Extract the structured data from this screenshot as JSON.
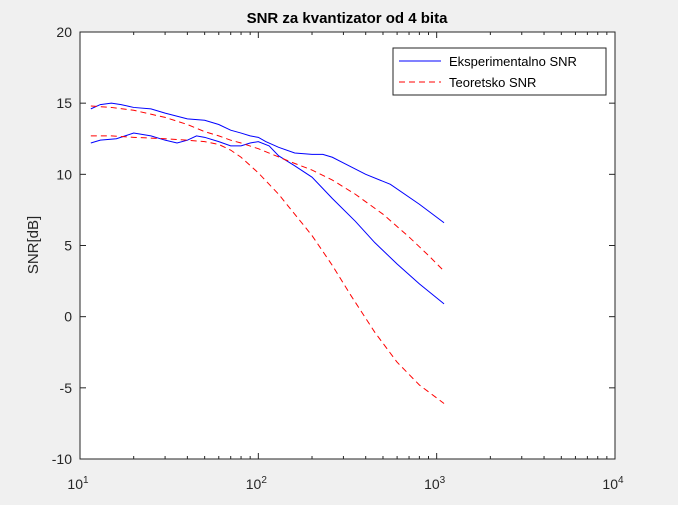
{
  "chart_data": {
    "type": "line",
    "title": "SNR za kvantizator od 4 bita",
    "xlabel": "",
    "ylabel": "SNR[dB]",
    "xscale": "log",
    "xlim": [
      10,
      10000
    ],
    "ylim": [
      -10,
      20
    ],
    "xticks": [
      {
        "value": 10,
        "base": "10",
        "exp": "1"
      },
      {
        "value": 100,
        "base": "10",
        "exp": "2"
      },
      {
        "value": 1000,
        "base": "10",
        "exp": "3"
      },
      {
        "value": 10000,
        "base": "10",
        "exp": "4"
      }
    ],
    "yticks": [
      -10,
      -5,
      0,
      5,
      10,
      15,
      20
    ],
    "grid": false,
    "legend_position": "top-right",
    "series": [
      {
        "name": "Eksperimentalno SNR",
        "color": "#0000ff",
        "style": "solid",
        "points": [
          [
            11.5,
            14.6
          ],
          [
            13,
            14.9
          ],
          [
            15,
            15.0
          ],
          [
            17,
            14.9
          ],
          [
            20,
            14.7
          ],
          [
            25,
            14.6
          ],
          [
            30,
            14.3
          ],
          [
            40,
            13.9
          ],
          [
            50,
            13.8
          ],
          [
            60,
            13.5
          ],
          [
            70,
            13.1
          ],
          [
            80,
            12.9
          ],
          [
            90,
            12.7
          ],
          [
            100,
            12.6
          ],
          [
            110,
            12.3
          ],
          [
            130,
            11.9
          ],
          [
            160,
            11.5
          ],
          [
            200,
            11.4
          ],
          [
            230,
            11.4
          ],
          [
            260,
            11.2
          ],
          [
            300,
            10.8
          ],
          [
            400,
            10.0
          ],
          [
            550,
            9.3
          ],
          [
            800,
            7.9
          ],
          [
            1100,
            6.6
          ]
        ]
      },
      {
        "name": "",
        "color": "#0000ff",
        "style": "solid",
        "points": [
          [
            11.5,
            12.2
          ],
          [
            13,
            12.4
          ],
          [
            16,
            12.5
          ],
          [
            20,
            12.9
          ],
          [
            25,
            12.7
          ],
          [
            30,
            12.4
          ],
          [
            35,
            12.2
          ],
          [
            40,
            12.4
          ],
          [
            45,
            12.7
          ],
          [
            50,
            12.6
          ],
          [
            60,
            12.3
          ],
          [
            70,
            12.0
          ],
          [
            80,
            12.0
          ],
          [
            90,
            12.2
          ],
          [
            100,
            12.3
          ],
          [
            115,
            12.0
          ],
          [
            130,
            11.3
          ],
          [
            160,
            10.6
          ],
          [
            200,
            9.8
          ],
          [
            260,
            8.3
          ],
          [
            350,
            6.7
          ],
          [
            450,
            5.2
          ],
          [
            600,
            3.7
          ],
          [
            800,
            2.3
          ],
          [
            1100,
            0.9
          ]
        ]
      },
      {
        "name": "Teoretsko SNR",
        "color": "#ff0000",
        "style": "dashed",
        "points": [
          [
            11.5,
            14.8
          ],
          [
            15,
            14.7
          ],
          [
            20,
            14.5
          ],
          [
            30,
            14.0
          ],
          [
            40,
            13.5
          ],
          [
            50,
            13.0
          ],
          [
            60,
            12.7
          ],
          [
            70,
            12.4
          ],
          [
            80,
            12.2
          ],
          [
            100,
            11.8
          ],
          [
            120,
            11.4
          ],
          [
            150,
            10.9
          ],
          [
            200,
            10.3
          ],
          [
            260,
            9.6
          ],
          [
            350,
            8.6
          ],
          [
            500,
            7.2
          ],
          [
            700,
            5.6
          ],
          [
            900,
            4.3
          ],
          [
            1100,
            3.2
          ]
        ]
      },
      {
        "name": "",
        "color": "#ff0000",
        "style": "dashed",
        "points": [
          [
            11.5,
            12.7
          ],
          [
            15,
            12.7
          ],
          [
            20,
            12.6
          ],
          [
            30,
            12.5
          ],
          [
            40,
            12.4
          ],
          [
            50,
            12.3
          ],
          [
            60,
            12.1
          ],
          [
            70,
            11.7
          ],
          [
            80,
            11.2
          ],
          [
            100,
            10.1
          ],
          [
            130,
            8.6
          ],
          [
            160,
            7.2
          ],
          [
            200,
            5.7
          ],
          [
            260,
            3.6
          ],
          [
            330,
            1.5
          ],
          [
            450,
            -1.1
          ],
          [
            600,
            -3.2
          ],
          [
            800,
            -4.8
          ],
          [
            1100,
            -6.1
          ]
        ]
      }
    ]
  }
}
